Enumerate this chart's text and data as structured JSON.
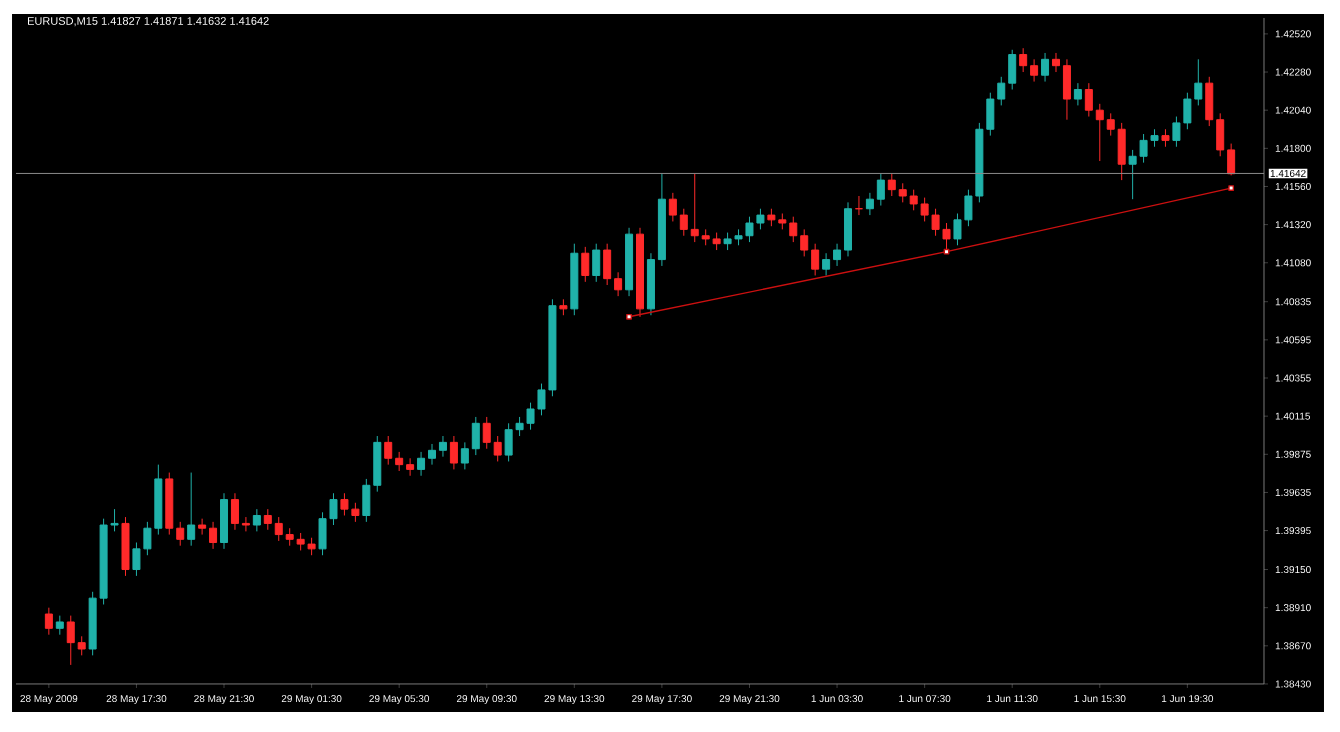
{
  "chart_data": {
    "type": "candlestick",
    "title": "EURUSD,M15  1.41827 1.41871 1.41632 1.41642",
    "categories": [
      "28 May 2009",
      null,
      null,
      null,
      null,
      null,
      null,
      null,
      "28 May 17:30",
      null,
      null,
      null,
      null,
      null,
      null,
      null,
      "28 May 21:30",
      null,
      null,
      null,
      null,
      null,
      null,
      null,
      "29 May 01:30",
      null,
      null,
      null,
      null,
      null,
      null,
      null,
      "29 May 05:30",
      null,
      null,
      null,
      null,
      null,
      null,
      null,
      "29 May 09:30",
      null,
      null,
      null,
      null,
      null,
      null,
      null,
      "29 May 13:30",
      null,
      null,
      null,
      null,
      null,
      null,
      null,
      "29 May 17:30",
      null,
      null,
      null,
      null,
      null,
      null,
      null,
      "29 May 21:30",
      null,
      null,
      null,
      null,
      null,
      null,
      null,
      "1 Jun 03:30",
      null,
      null,
      null,
      null,
      null,
      null,
      null,
      "1 Jun 07:30",
      null,
      null,
      null,
      null,
      null,
      null,
      null,
      "1 Jun 11:30",
      null,
      null,
      null,
      null,
      null,
      null,
      null,
      "1 Jun 15:30",
      null,
      null,
      null,
      null,
      null,
      null,
      null,
      "1 Jun 19:30",
      null,
      null,
      null,
      null
    ],
    "ohlc": [
      [
        1.3887,
        1.3891,
        1.3874,
        1.3878
      ],
      [
        1.3878,
        1.3886,
        1.3874,
        1.3882
      ],
      [
        1.3882,
        1.3886,
        1.3855,
        1.3869
      ],
      [
        1.3869,
        1.3873,
        1.3861,
        1.3865
      ],
      [
        1.3865,
        1.3901,
        1.3861,
        1.3897
      ],
      [
        1.3897,
        1.3947,
        1.3893,
        1.3943
      ],
      [
        1.3943,
        1.3953,
        1.3939,
        1.3944
      ],
      [
        1.3944,
        1.3948,
        1.3911,
        1.3915
      ],
      [
        1.3915,
        1.3932,
        1.3911,
        1.3928
      ],
      [
        1.3928,
        1.3945,
        1.3924,
        1.3941
      ],
      [
        1.3941,
        1.3981,
        1.3937,
        1.3972
      ],
      [
        1.3972,
        1.3976,
        1.3937,
        1.3941
      ],
      [
        1.3941,
        1.3945,
        1.393,
        1.3934
      ],
      [
        1.3934,
        1.3976,
        1.393,
        1.3943
      ],
      [
        1.3943,
        1.3947,
        1.3937,
        1.3941
      ],
      [
        1.3941,
        1.3945,
        1.3928,
        1.3932
      ],
      [
        1.3932,
        1.3963,
        1.3928,
        1.3959
      ],
      [
        1.3959,
        1.3963,
        1.394,
        1.3944
      ],
      [
        1.3944,
        1.3948,
        1.3939,
        1.3943
      ],
      [
        1.3943,
        1.3953,
        1.3939,
        1.3949
      ],
      [
        1.3949,
        1.3953,
        1.394,
        1.3944
      ],
      [
        1.3944,
        1.3948,
        1.3933,
        1.3937
      ],
      [
        1.3937,
        1.3941,
        1.393,
        1.3934
      ],
      [
        1.3934,
        1.3938,
        1.3927,
        1.3931
      ],
      [
        1.3931,
        1.3935,
        1.3924,
        1.3928
      ],
      [
        1.3928,
        1.3951,
        1.3924,
        1.3947
      ],
      [
        1.3947,
        1.3963,
        1.3943,
        1.3959
      ],
      [
        1.3959,
        1.3963,
        1.3949,
        1.3953
      ],
      [
        1.3953,
        1.3957,
        1.3945,
        1.3949
      ],
      [
        1.3949,
        1.3972,
        1.3945,
        1.3968
      ],
      [
        1.3968,
        1.3999,
        1.3964,
        1.3995
      ],
      [
        1.3995,
        1.3999,
        1.3981,
        1.3985
      ],
      [
        1.3985,
        1.3989,
        1.3977,
        1.3981
      ],
      [
        1.3981,
        1.3985,
        1.3974,
        1.3978
      ],
      [
        1.3978,
        1.3989,
        1.3974,
        1.3985
      ],
      [
        1.3985,
        1.3994,
        1.3981,
        1.399
      ],
      [
        1.399,
        1.3999,
        1.3986,
        1.3995
      ],
      [
        1.3995,
        1.3999,
        1.3978,
        1.3982
      ],
      [
        1.3982,
        1.3995,
        1.3978,
        1.3991
      ],
      [
        1.3991,
        1.4011,
        1.3987,
        1.4007
      ],
      [
        1.4007,
        1.4011,
        1.3991,
        1.3995
      ],
      [
        1.3995,
        1.3999,
        1.3983,
        1.3987
      ],
      [
        1.3987,
        1.4007,
        1.3983,
        1.4003
      ],
      [
        1.4003,
        1.4011,
        1.3999,
        1.4007
      ],
      [
        1.4007,
        1.402,
        1.4003,
        1.4016
      ],
      [
        1.4016,
        1.4032,
        1.4012,
        1.4028
      ],
      [
        1.4028,
        1.4085,
        1.4024,
        1.4081
      ],
      [
        1.4081,
        1.4085,
        1.4075,
        1.4079
      ],
      [
        1.4079,
        1.412,
        1.4075,
        1.4114
      ],
      [
        1.4114,
        1.4118,
        1.4096,
        1.41
      ],
      [
        1.41,
        1.412,
        1.4096,
        1.4116
      ],
      [
        1.4116,
        1.412,
        1.4094,
        1.4098
      ],
      [
        1.4098,
        1.4102,
        1.4087,
        1.4091
      ],
      [
        1.4091,
        1.413,
        1.4087,
        1.4126
      ],
      [
        1.4126,
        1.413,
        1.4074,
        1.4079
      ],
      [
        1.4079,
        1.4114,
        1.4075,
        1.411
      ],
      [
        1.411,
        1.4164,
        1.4106,
        1.4148
      ],
      [
        1.4148,
        1.4152,
        1.4134,
        1.4138
      ],
      [
        1.4138,
        1.4142,
        1.4125,
        1.4129
      ],
      [
        1.4129,
        1.4164,
        1.4121,
        1.4125
      ],
      [
        1.4125,
        1.4129,
        1.4119,
        1.4123
      ],
      [
        1.4123,
        1.4127,
        1.4116,
        1.412
      ],
      [
        1.412,
        1.4127,
        1.4116,
        1.4123
      ],
      [
        1.4123,
        1.4129,
        1.4119,
        1.4125
      ],
      [
        1.4125,
        1.4137,
        1.4121,
        1.4133
      ],
      [
        1.4133,
        1.4142,
        1.4129,
        1.4138
      ],
      [
        1.4138,
        1.4142,
        1.4131,
        1.4135
      ],
      [
        1.4135,
        1.4139,
        1.4129,
        1.4133
      ],
      [
        1.4133,
        1.4137,
        1.4121,
        1.4125
      ],
      [
        1.4125,
        1.4129,
        1.4112,
        1.4116
      ],
      [
        1.4116,
        1.412,
        1.41,
        1.4104
      ],
      [
        1.4104,
        1.4114,
        1.41,
        1.411
      ],
      [
        1.411,
        1.412,
        1.4106,
        1.4116
      ],
      [
        1.4116,
        1.4146,
        1.4112,
        1.4142
      ],
      [
        1.4142,
        1.415,
        1.4138,
        1.4142
      ],
      [
        1.4142,
        1.4152,
        1.4138,
        1.4148
      ],
      [
        1.4148,
        1.4164,
        1.4144,
        1.416
      ],
      [
        1.416,
        1.4164,
        1.415,
        1.4154
      ],
      [
        1.4154,
        1.4158,
        1.4146,
        1.415
      ],
      [
        1.415,
        1.4154,
        1.4141,
        1.4145
      ],
      [
        1.4145,
        1.4149,
        1.4134,
        1.4138
      ],
      [
        1.4138,
        1.4142,
        1.4125,
        1.4129
      ],
      [
        1.4129,
        1.4133,
        1.4114,
        1.4123
      ],
      [
        1.4123,
        1.4139,
        1.4119,
        1.4135
      ],
      [
        1.4135,
        1.4154,
        1.4131,
        1.415
      ],
      [
        1.415,
        1.4196,
        1.4146,
        1.4192
      ],
      [
        1.4192,
        1.4215,
        1.4188,
        1.4211
      ],
      [
        1.4211,
        1.4225,
        1.4207,
        1.4221
      ],
      [
        1.4221,
        1.4242,
        1.4217,
        1.4239
      ],
      [
        1.4239,
        1.4243,
        1.4228,
        1.4232
      ],
      [
        1.4232,
        1.4236,
        1.4222,
        1.4226
      ],
      [
        1.4226,
        1.424,
        1.4222,
        1.4236
      ],
      [
        1.4236,
        1.424,
        1.4228,
        1.4232
      ],
      [
        1.4232,
        1.4236,
        1.4198,
        1.4211
      ],
      [
        1.4211,
        1.4221,
        1.4207,
        1.4217
      ],
      [
        1.4217,
        1.4221,
        1.42,
        1.4204
      ],
      [
        1.4204,
        1.4208,
        1.4172,
        1.4198
      ],
      [
        1.4198,
        1.4202,
        1.4188,
        1.4192
      ],
      [
        1.4192,
        1.4196,
        1.416,
        1.417
      ],
      [
        1.417,
        1.4179,
        1.4148,
        1.4175
      ],
      [
        1.4175,
        1.4189,
        1.4171,
        1.4185
      ],
      [
        1.4185,
        1.4192,
        1.4181,
        1.4188
      ],
      [
        1.4188,
        1.4192,
        1.4181,
        1.4185
      ],
      [
        1.4185,
        1.42,
        1.4181,
        1.4196
      ],
      [
        1.4196,
        1.4215,
        1.4192,
        1.4211
      ],
      [
        1.4211,
        1.4236,
        1.4207,
        1.4221
      ],
      [
        1.4221,
        1.4225,
        1.4194,
        1.4198
      ],
      [
        1.4198,
        1.4202,
        1.4175,
        1.4179
      ],
      [
        1.4179,
        1.4183,
        1.4163,
        1.4164
      ]
    ],
    "series": [
      {
        "type": "line",
        "values": [
          null,
          null,
          null,
          null,
          null,
          null,
          null,
          null,
          null,
          null,
          null,
          null,
          null,
          null,
          null,
          null,
          null,
          null,
          null,
          null,
          null,
          null,
          null,
          null,
          null,
          null,
          null,
          null,
          null,
          null,
          null,
          null,
          null,
          null,
          null,
          null,
          null,
          null,
          null,
          null,
          null,
          null,
          null,
          null,
          null,
          null,
          null,
          null,
          null,
          null,
          null,
          null,
          null,
          1.4074,
          null,
          null,
          null,
          null,
          null,
          null,
          null,
          null,
          null,
          null,
          null,
          null,
          null,
          null,
          null,
          null,
          null,
          null,
          null,
          null,
          null,
          null,
          null,
          null,
          null,
          null,
          null,
          null,
          1.4115,
          null,
          null,
          null,
          null,
          null,
          null,
          null,
          null,
          null,
          null,
          null,
          null,
          null,
          null,
          null,
          null,
          null,
          null,
          null,
          null,
          null,
          null,
          null,
          null,
          null,
          1.4155
        ],
        "color": "#cc1010",
        "marker": "square"
      }
    ],
    "ylim": [
      1.3843,
      1.4262
    ],
    "yticks": [
      {
        "value": 1.3843,
        "label": "1.38430"
      },
      {
        "value": 1.3867,
        "label": "1.38670"
      },
      {
        "value": 1.3891,
        "label": "1.38910"
      },
      {
        "value": 1.3915,
        "label": "1.39150"
      },
      {
        "value": 1.39395,
        "label": "1.39395"
      },
      {
        "value": 1.39635,
        "label": "1.39635"
      },
      {
        "value": 1.39875,
        "label": "1.39875"
      },
      {
        "value": 1.40115,
        "label": "1.40115"
      },
      {
        "value": 1.40355,
        "label": "1.40355"
      },
      {
        "value": 1.40595,
        "label": "1.40595"
      },
      {
        "value": 1.40835,
        "label": "1.40835"
      },
      {
        "value": 1.4108,
        "label": "1.41080"
      },
      {
        "value": 1.4132,
        "label": "1.41320"
      },
      {
        "value": 1.4156,
        "label": "1.41560"
      },
      {
        "value": 1.418,
        "label": "1.41800"
      },
      {
        "value": 1.4204,
        "label": "1.42040"
      },
      {
        "value": 1.4228,
        "label": "1.42280"
      },
      {
        "value": 1.4252,
        "label": "1.42520"
      }
    ],
    "ref_lines": [
      {
        "axis": "y",
        "value": 1.41642,
        "label": "1.41642",
        "color": "#8c8c8c"
      }
    ]
  }
}
